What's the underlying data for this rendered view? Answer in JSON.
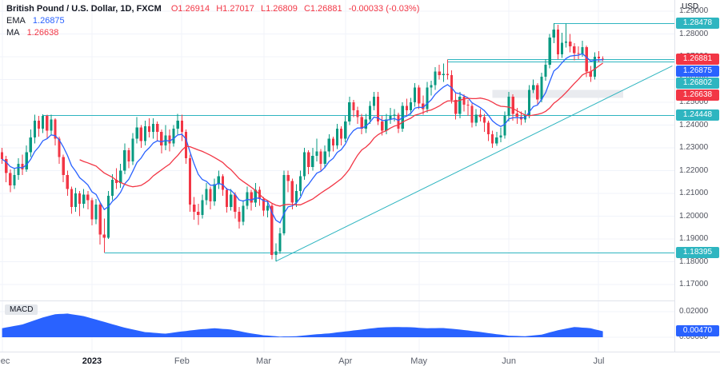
{
  "header": {
    "symbol_title": "British Pound / U.S. Dollar, 1D, FXCM",
    "ohlc": {
      "open": "O1.26914",
      "high": "H1.27017",
      "low": "L1.26809",
      "close": "C1.26881",
      "change": "-0.00033 (-0.03%)"
    },
    "indicators": [
      {
        "name": "EMA",
        "value": "1.26875",
        "color": "#2962ff"
      },
      {
        "name": "MA",
        "value": "1.26638",
        "color": "#f23645"
      }
    ]
  },
  "axis": {
    "currency": "USD",
    "price_ticks": [
      "1.29000",
      "1.28000",
      "1.27000",
      "1.26000",
      "1.25000",
      "1.24000",
      "1.23000",
      "1.22000",
      "1.21000",
      "1.20000",
      "1.19000",
      "1.18000",
      "1.17000"
    ],
    "macd_ticks": [
      "0.02000",
      "0.00000"
    ],
    "time_ticks": [
      {
        "label": "Dec",
        "index": 0
      },
      {
        "label": "2023",
        "index": 22,
        "major": true
      },
      {
        "label": "Feb",
        "index": 44
      },
      {
        "label": "Mar",
        "index": 64
      },
      {
        "label": "Apr",
        "index": 84
      },
      {
        "label": "May",
        "index": 102
      },
      {
        "label": "Jun",
        "index": 124
      },
      {
        "label": "Jul",
        "index": 146
      }
    ]
  },
  "price_labels": [
    {
      "value": "1.28478",
      "bg": "#2eb5c0",
      "fg": "#ffffff"
    },
    {
      "value": "1.26881",
      "bg": "#f23645",
      "fg": "#ffffff"
    },
    {
      "value": "1.26875",
      "bg": "#2962ff",
      "fg": "#ffffff"
    },
    {
      "value": "1.26802",
      "bg": "#2eb5c0",
      "fg": "#ffffff"
    },
    {
      "value": "1.26638",
      "bg": "#f23645",
      "fg": "#ffffff"
    },
    {
      "value": "1.24448",
      "bg": "#2eb5c0",
      "fg": "#ffffff"
    },
    {
      "value": "1.18395",
      "bg": "#2eb5c0",
      "fg": "#ffffff"
    }
  ],
  "macd_panel": {
    "label": "MACD",
    "value_label": "0.00470",
    "value_bg": "#2962ff"
  },
  "colors": {
    "up": "#089981",
    "down": "#f23645",
    "grid": "#f0f3fa",
    "separator": "#e0e3eb",
    "level_line": "#2eb5c0",
    "trend_line": "#2eb5c0",
    "macd_fill": "#2962ff",
    "band": "#e9ebef",
    "ohlc_text": "#f23645",
    "text": "#131722"
  },
  "chart_data": [
    {
      "type": "candlestick",
      "title": "British Pound / U.S. Dollar, 1D, FXCM",
      "ylim": [
        1.17,
        1.29
      ],
      "columns": [
        "open",
        "high",
        "low",
        "close"
      ],
      "candles": [
        [
          1.228,
          1.23,
          1.223,
          1.225
        ],
        [
          1.225,
          1.2265,
          1.215,
          1.219
        ],
        [
          1.219,
          1.2205,
          1.2105,
          1.2135
        ],
        [
          1.2135,
          1.221,
          1.212,
          1.218
        ],
        [
          1.218,
          1.2255,
          1.216,
          1.223
        ],
        [
          1.223,
          1.227,
          1.218,
          1.2205
        ],
        [
          1.2205,
          1.231,
          1.2195,
          1.228
        ],
        [
          1.228,
          1.238,
          1.226,
          1.2345
        ],
        [
          1.2345,
          1.2445,
          1.232,
          1.242
        ],
        [
          1.242,
          1.244,
          1.235,
          1.2385
        ],
        [
          1.2385,
          1.2448,
          1.2365,
          1.244
        ],
        [
          1.244,
          1.2445,
          1.234,
          1.2375
        ],
        [
          1.2375,
          1.2446,
          1.2355,
          1.2425
        ],
        [
          1.2425,
          1.243,
          1.231,
          1.234
        ],
        [
          1.234,
          1.235,
          1.223,
          1.226
        ],
        [
          1.226,
          1.227,
          1.215,
          1.218
        ],
        [
          1.218,
          1.22,
          1.209,
          1.212
        ],
        [
          1.212,
          1.213,
          1.201,
          1.204
        ],
        [
          1.204,
          1.2125,
          1.202,
          1.21
        ],
        [
          1.21,
          1.211,
          1.2,
          1.2055
        ],
        [
          1.2055,
          1.212,
          1.2035,
          1.2095
        ],
        [
          1.2095,
          1.211,
          1.203,
          1.207
        ],
        [
          1.207,
          1.208,
          1.196,
          1.1985
        ],
        [
          1.1985,
          1.2075,
          1.1965,
          1.205
        ],
        [
          1.205,
          1.206,
          1.1875,
          1.192
        ],
        [
          1.192,
          1.199,
          1.1841,
          1.1905
        ],
        [
          1.1905,
          1.211,
          1.19,
          1.209
        ],
        [
          1.209,
          1.2185,
          1.207,
          1.216
        ],
        [
          1.216,
          1.221,
          1.212,
          1.2145
        ],
        [
          1.2145,
          1.223,
          1.2125,
          1.22
        ],
        [
          1.22,
          1.232,
          1.2185,
          1.229
        ],
        [
          1.229,
          1.23,
          1.221,
          1.224
        ],
        [
          1.224,
          1.2365,
          1.2225,
          1.234
        ],
        [
          1.234,
          1.2435,
          1.232,
          1.239
        ],
        [
          1.239,
          1.24,
          1.23,
          1.233
        ],
        [
          1.233,
          1.242,
          1.231,
          1.2395
        ],
        [
          1.2395,
          1.243,
          1.2345,
          1.237
        ],
        [
          1.237,
          1.243,
          1.234,
          1.2405
        ],
        [
          1.2405,
          1.2415,
          1.233,
          1.237
        ],
        [
          1.237,
          1.238,
          1.2275,
          1.231
        ],
        [
          1.231,
          1.24,
          1.229,
          1.2355
        ],
        [
          1.2355,
          1.238,
          1.2285,
          1.232
        ],
        [
          1.232,
          1.24,
          1.2305,
          1.2385
        ],
        [
          1.2385,
          1.245,
          1.236,
          1.242
        ],
        [
          1.242,
          1.2445,
          1.233,
          1.237
        ],
        [
          1.237,
          1.238,
          1.223,
          1.2255
        ],
        [
          1.2255,
          1.227,
          1.202,
          1.205
        ],
        [
          1.205,
          1.2085,
          1.1985,
          1.202
        ],
        [
          1.202,
          1.2055,
          1.1961,
          1.2005
        ],
        [
          1.2005,
          1.2095,
          1.199,
          1.207
        ],
        [
          1.207,
          1.2145,
          1.205,
          1.212
        ],
        [
          1.212,
          1.213,
          1.203,
          1.2065
        ],
        [
          1.2065,
          1.2165,
          1.2045,
          1.214
        ],
        [
          1.214,
          1.22,
          1.212,
          1.2175
        ],
        [
          1.2175,
          1.2185,
          1.209,
          1.2115
        ],
        [
          1.2115,
          1.2125,
          1.2015,
          1.204
        ],
        [
          1.204,
          1.212,
          1.2025,
          1.2095
        ],
        [
          1.2095,
          1.2105,
          1.199,
          1.202
        ],
        [
          1.202,
          1.204,
          1.1945,
          1.1975
        ],
        [
          1.1975,
          1.207,
          1.196,
          1.2045
        ],
        [
          1.2045,
          1.213,
          1.203,
          1.2105
        ],
        [
          1.2105,
          1.2115,
          1.2025,
          1.206
        ],
        [
          1.206,
          1.2145,
          1.204,
          1.2115
        ],
        [
          1.2115,
          1.213,
          1.2045,
          1.2075
        ],
        [
          1.2075,
          1.2085,
          1.2,
          1.2025
        ],
        [
          1.2025,
          1.207,
          1.1995,
          1.2045
        ],
        [
          1.2045,
          1.2055,
          1.181,
          1.183
        ],
        [
          1.183,
          1.188,
          1.1802,
          1.1845
        ],
        [
          1.1845,
          1.195,
          1.1835,
          1.1925
        ],
        [
          1.1925,
          1.22,
          1.1915,
          1.218
        ],
        [
          1.218,
          1.22,
          1.2105,
          1.2155
        ],
        [
          1.2155,
          1.2165,
          1.203,
          1.206
        ],
        [
          1.206,
          1.214,
          1.204,
          1.211
        ],
        [
          1.211,
          1.22,
          1.209,
          1.2175
        ],
        [
          1.2175,
          1.23,
          1.216,
          1.228
        ],
        [
          1.228,
          1.229,
          1.2185,
          1.2215
        ],
        [
          1.2215,
          1.23,
          1.22,
          1.2265
        ],
        [
          1.2265,
          1.234,
          1.224,
          1.2285
        ],
        [
          1.2285,
          1.2295,
          1.22,
          1.223
        ],
        [
          1.223,
          1.231,
          1.221,
          1.2285
        ],
        [
          1.2285,
          1.236,
          1.226,
          1.234
        ],
        [
          1.234,
          1.235,
          1.2285,
          1.231
        ],
        [
          1.231,
          1.2405,
          1.2295,
          1.2385
        ],
        [
          1.2385,
          1.2395,
          1.231,
          1.234
        ],
        [
          1.234,
          1.244,
          1.2325,
          1.2415
        ],
        [
          1.2415,
          1.2525,
          1.24,
          1.25
        ],
        [
          1.25,
          1.251,
          1.2435,
          1.2465
        ],
        [
          1.2465,
          1.248,
          1.2405,
          1.2435
        ],
        [
          1.2435,
          1.245,
          1.236,
          1.2385
        ],
        [
          1.2385,
          1.245,
          1.2365,
          1.2425
        ],
        [
          1.2425,
          1.2505,
          1.2405,
          1.2485
        ],
        [
          1.2485,
          1.2545,
          1.2465,
          1.2525
        ],
        [
          1.2525,
          1.2546,
          1.24,
          1.2415
        ],
        [
          1.2415,
          1.244,
          1.2355,
          1.2375
        ],
        [
          1.2375,
          1.245,
          1.236,
          1.2425
        ],
        [
          1.2425,
          1.2475,
          1.2405,
          1.244
        ],
        [
          1.244,
          1.247,
          1.2415,
          1.2445
        ],
        [
          1.2445,
          1.2455,
          1.2365,
          1.2385
        ],
        [
          1.2385,
          1.25,
          1.237,
          1.2485
        ],
        [
          1.2485,
          1.2515,
          1.244,
          1.2465
        ],
        [
          1.2465,
          1.252,
          1.2445,
          1.25
        ],
        [
          1.25,
          1.2585,
          1.248,
          1.2565
        ],
        [
          1.2565,
          1.2575,
          1.247,
          1.2495
        ],
        [
          1.2495,
          1.253,
          1.2445,
          1.247
        ],
        [
          1.247,
          1.259,
          1.2455,
          1.2565
        ],
        [
          1.2565,
          1.2595,
          1.253,
          1.2575
        ],
        [
          1.2575,
          1.2655,
          1.2555,
          1.2635
        ],
        [
          1.2635,
          1.2665,
          1.26,
          1.262
        ],
        [
          1.262,
          1.267,
          1.259,
          1.2625
        ],
        [
          1.2625,
          1.2688,
          1.26,
          1.262
        ],
        [
          1.262,
          1.264,
          1.2495,
          1.251
        ],
        [
          1.251,
          1.254,
          1.2425,
          1.245
        ],
        [
          1.245,
          1.2545,
          1.243,
          1.2525
        ],
        [
          1.2525,
          1.2535,
          1.246,
          1.249
        ],
        [
          1.249,
          1.251,
          1.244,
          1.2485
        ],
        [
          1.2485,
          1.2495,
          1.239,
          1.241
        ],
        [
          1.241,
          1.247,
          1.2395,
          1.2445
        ],
        [
          1.2445,
          1.247,
          1.2415,
          1.2435
        ],
        [
          1.2435,
          1.245,
          1.237,
          1.241
        ],
        [
          1.241,
          1.242,
          1.233,
          1.236
        ],
        [
          1.236,
          1.2375,
          1.23,
          1.232
        ],
        [
          1.232,
          1.237,
          1.2308,
          1.2345
        ],
        [
          1.2345,
          1.239,
          1.2325,
          1.2355
        ],
        [
          1.2355,
          1.246,
          1.234,
          1.244
        ],
        [
          1.244,
          1.2545,
          1.2415,
          1.2525
        ],
        [
          1.2525,
          1.2535,
          1.242,
          1.245
        ],
        [
          1.245,
          1.2475,
          1.2405,
          1.2437
        ],
        [
          1.2437,
          1.246,
          1.24,
          1.2425
        ],
        [
          1.2425,
          1.2465,
          1.241,
          1.2442
        ],
        [
          1.2442,
          1.2575,
          1.243,
          1.2555
        ],
        [
          1.2555,
          1.26,
          1.254,
          1.2575
        ],
        [
          1.2575,
          1.2585,
          1.249,
          1.2513
        ],
        [
          1.2513,
          1.263,
          1.25,
          1.2612
        ],
        [
          1.2612,
          1.269,
          1.2595,
          1.2665
        ],
        [
          1.2665,
          1.28,
          1.265,
          1.2785
        ],
        [
          1.2785,
          1.2848,
          1.276,
          1.282
        ],
        [
          1.282,
          1.284,
          1.269,
          1.271
        ],
        [
          1.271,
          1.2805,
          1.2695,
          1.2762
        ],
        [
          1.2762,
          1.2845,
          1.274,
          1.2767
        ],
        [
          1.2767,
          1.28,
          1.272,
          1.2745
        ],
        [
          1.2745,
          1.276,
          1.2685,
          1.2715
        ],
        [
          1.2715,
          1.2745,
          1.269,
          1.2712
        ],
        [
          1.2712,
          1.277,
          1.27,
          1.2742
        ],
        [
          1.2742,
          1.275,
          1.261,
          1.2635
        ],
        [
          1.2635,
          1.266,
          1.259,
          1.2612
        ],
        [
          1.2612,
          1.272,
          1.26,
          1.27
        ],
        [
          1.27,
          1.2725,
          1.2675,
          1.2693
        ],
        [
          1.26914,
          1.27017,
          1.26809,
          1.26881
        ]
      ],
      "overlays": [
        {
          "type": "line",
          "name": "EMA",
          "period": 9,
          "color": "#2962ff"
        },
        {
          "type": "line",
          "name": "MA",
          "period": 20,
          "color": "#f23645"
        }
      ],
      "levels": [
        {
          "price": 1.28478,
          "from_index": 135
        },
        {
          "price": 1.26881,
          "from_index": 109
        },
        {
          "price": 1.26802,
          "from_index": 109
        },
        {
          "price": 1.24448,
          "from_index": 10
        },
        {
          "price": 1.18395,
          "from_index": 25
        }
      ],
      "trendline": {
        "from": {
          "index": 67,
          "price": 1.1802
        },
        "to": {
          "index": 164,
          "price": 1.266
        }
      },
      "band": {
        "from_index": 120,
        "to_index": 152,
        "price_top": 1.2555,
        "price_bottom": 1.252
      }
    },
    {
      "type": "area",
      "name": "MACD",
      "ylim": [
        0,
        0.02
      ],
      "last_value": 0.0047,
      "values": [
        0.007,
        0.0076,
        0.0082,
        0.0088,
        0.0094,
        0.01,
        0.0111,
        0.0122,
        0.0133,
        0.0144,
        0.0155,
        0.0163,
        0.0172,
        0.018,
        0.0182,
        0.0183,
        0.0185,
        0.018,
        0.0175,
        0.017,
        0.0165,
        0.0156,
        0.0147,
        0.0138,
        0.0129,
        0.012,
        0.0111,
        0.0102,
        0.0093,
        0.0084,
        0.0075,
        0.0068,
        0.0061,
        0.0054,
        0.0047,
        0.004,
        0.0038,
        0.0035,
        0.0033,
        0.003,
        0.0028,
        0.0032,
        0.0037,
        0.0041,
        0.0045,
        0.0049,
        0.0053,
        0.0056,
        0.006,
        0.0063,
        0.0065,
        0.0068,
        0.007,
        0.0068,
        0.0065,
        0.0063,
        0.006,
        0.0054,
        0.0048,
        0.0041,
        0.0035,
        0.003,
        0.0025,
        0.002,
        0.0015,
        0.0013,
        0.001,
        0.0008,
        0.0005,
        0.0006,
        0.0006,
        0.0007,
        0.0008,
        0.0011,
        0.0014,
        0.0017,
        0.002,
        0.0023,
        0.0025,
        0.0028,
        0.003,
        0.0034,
        0.0038,
        0.0041,
        0.0045,
        0.0049,
        0.0053,
        0.0056,
        0.006,
        0.0064,
        0.0068,
        0.0071,
        0.0075,
        0.0076,
        0.0078,
        0.0079,
        0.008,
        0.008,
        0.0079,
        0.0079,
        0.0078,
        0.0076,
        0.0074,
        0.0072,
        0.007,
        0.0071,
        0.0071,
        0.0072,
        0.0072,
        0.0069,
        0.0066,
        0.0063,
        0.006,
        0.0056,
        0.0053,
        0.0049,
        0.0045,
        0.0041,
        0.0037,
        0.0032,
        0.0028,
        0.0024,
        0.002,
        0.0016,
        0.0012,
        0.0011,
        0.001,
        0.0009,
        0.0008,
        0.0011,
        0.0014,
        0.0017,
        0.002,
        0.0029,
        0.0038,
        0.0046,
        0.0055,
        0.0061,
        0.0067,
        0.0074,
        0.008,
        0.0078,
        0.0075,
        0.0073,
        0.007,
        0.0062,
        0.0055,
        0.0047
      ]
    }
  ]
}
